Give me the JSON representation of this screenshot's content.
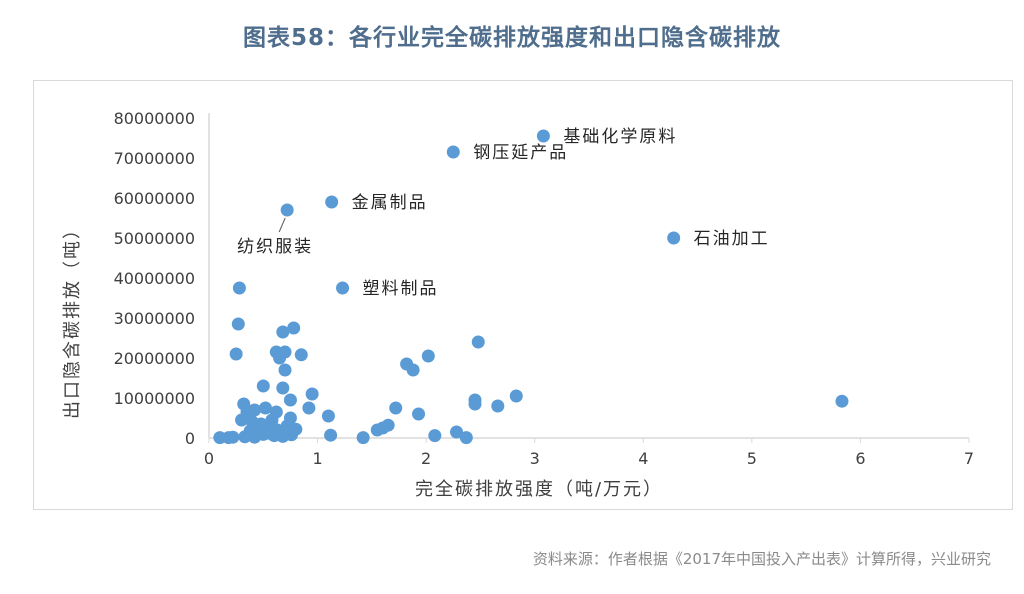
{
  "title": "图表58：各行业完全碳排放强度和出口隐含碳排放",
  "source": "资料来源：作者根据《2017年中国投入产出表》计算所得，兴业研究",
  "colors": {
    "title": "#4f6d8c",
    "point": "#5b9bd5",
    "axis": "#d9d9d9",
    "text": "#404040"
  },
  "chart_data": {
    "type": "scatter",
    "title": "",
    "xlabel": "完全碳排放强度（吨/万元）",
    "ylabel": "出口隐含碳排放（吨）",
    "xlim": [
      0,
      7
    ],
    "ylim": [
      0,
      80000000
    ],
    "x_ticks": [
      0,
      1,
      2,
      3,
      4,
      5,
      6,
      7
    ],
    "y_ticks": [
      0,
      10000000,
      20000000,
      30000000,
      40000000,
      50000000,
      60000000,
      70000000,
      80000000
    ],
    "x_tick_labels": [
      "0",
      "1",
      "2",
      "3",
      "4",
      "5",
      "6",
      "7"
    ],
    "y_tick_labels": [
      "0",
      "10000000",
      "20000000",
      "30000000",
      "40000000",
      "50000000",
      "60000000",
      "70000000",
      "80000000"
    ],
    "grid": false,
    "labeled_points": [
      {
        "label": "基础化学原料",
        "x": 3.08,
        "y": 75500000
      },
      {
        "label": "钢压延产品",
        "x": 2.25,
        "y": 71500000
      },
      {
        "label": "金属制品",
        "x": 1.13,
        "y": 59000000
      },
      {
        "label": "纺织服装",
        "x": 0.72,
        "y": 57000000
      },
      {
        "label": "石油加工",
        "x": 4.28,
        "y": 50000000
      },
      {
        "label": "塑料制品",
        "x": 1.23,
        "y": 37500000
      }
    ],
    "points": [
      {
        "x": 0.28,
        "y": 37500000
      },
      {
        "x": 0.27,
        "y": 28500000
      },
      {
        "x": 0.25,
        "y": 21000000
      },
      {
        "x": 0.62,
        "y": 21500000
      },
      {
        "x": 0.68,
        "y": 26500000
      },
      {
        "x": 0.78,
        "y": 27500000
      },
      {
        "x": 0.7,
        "y": 21500000
      },
      {
        "x": 0.85,
        "y": 20800000
      },
      {
        "x": 0.65,
        "y": 20000000
      },
      {
        "x": 0.7,
        "y": 17000000
      },
      {
        "x": 0.5,
        "y": 13000000
      },
      {
        "x": 0.68,
        "y": 12500000
      },
      {
        "x": 0.75,
        "y": 9500000
      },
      {
        "x": 0.95,
        "y": 11000000
      },
      {
        "x": 0.92,
        "y": 7500000
      },
      {
        "x": 1.1,
        "y": 5500000
      },
      {
        "x": 1.12,
        "y": 700000
      },
      {
        "x": 0.32,
        "y": 8500000
      },
      {
        "x": 0.35,
        "y": 6500000
      },
      {
        "x": 0.42,
        "y": 7000000
      },
      {
        "x": 0.52,
        "y": 7500000
      },
      {
        "x": 0.58,
        "y": 4500000
      },
      {
        "x": 0.62,
        "y": 6500000
      },
      {
        "x": 0.75,
        "y": 5000000
      },
      {
        "x": 0.3,
        "y": 4500000
      },
      {
        "x": 0.4,
        "y": 4000000
      },
      {
        "x": 0.48,
        "y": 3500000
      },
      {
        "x": 0.55,
        "y": 2500000
      },
      {
        "x": 0.63,
        "y": 2000000
      },
      {
        "x": 0.72,
        "y": 3000000
      },
      {
        "x": 0.38,
        "y": 1800000
      },
      {
        "x": 0.45,
        "y": 1500000
      },
      {
        "x": 0.5,
        "y": 900000
      },
      {
        "x": 0.6,
        "y": 600000
      },
      {
        "x": 0.68,
        "y": 400000
      },
      {
        "x": 0.76,
        "y": 800000
      },
      {
        "x": 0.33,
        "y": 300000
      },
      {
        "x": 0.42,
        "y": 200000
      },
      {
        "x": 0.22,
        "y": 200000
      },
      {
        "x": 0.1,
        "y": 100000
      },
      {
        "x": 0.18,
        "y": 100000
      },
      {
        "x": 0.55,
        "y": 1200000
      },
      {
        "x": 0.8,
        "y": 2200000
      },
      {
        "x": 1.42,
        "y": 100000
      },
      {
        "x": 1.55,
        "y": 2000000
      },
      {
        "x": 1.6,
        "y": 2500000
      },
      {
        "x": 1.65,
        "y": 3200000
      },
      {
        "x": 1.72,
        "y": 7500000
      },
      {
        "x": 1.82,
        "y": 18500000
      },
      {
        "x": 1.88,
        "y": 17000000
      },
      {
        "x": 1.93,
        "y": 6000000
      },
      {
        "x": 2.02,
        "y": 20500000
      },
      {
        "x": 2.08,
        "y": 600000
      },
      {
        "x": 2.28,
        "y": 1500000
      },
      {
        "x": 2.37,
        "y": 100000
      },
      {
        "x": 2.45,
        "y": 9500000
      },
      {
        "x": 2.45,
        "y": 8500000
      },
      {
        "x": 2.48,
        "y": 24000000
      },
      {
        "x": 2.66,
        "y": 8000000
      },
      {
        "x": 2.83,
        "y": 10500000
      },
      {
        "x": 5.83,
        "y": 9200000
      }
    ]
  }
}
